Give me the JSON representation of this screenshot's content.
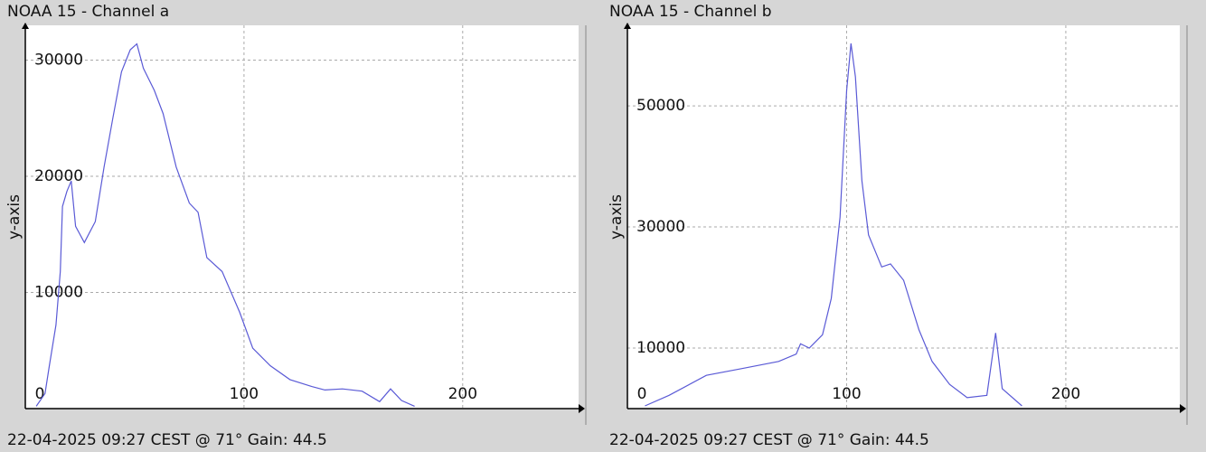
{
  "chart_data": [
    {
      "type": "line",
      "title": "NOAA 15 - Channel a",
      "footer": "22-04-2025 09:27 CEST @ 71° Gain: 44.5",
      "y_label": "y-axis",
      "xlim": [
        0,
        253
      ],
      "ylim": [
        0,
        33000
      ],
      "xticks": [
        0,
        100,
        200
      ],
      "yticks": [
        10000,
        20000,
        30000
      ],
      "grid": true,
      "series": [
        {
          "color": "#5a5ad6",
          "x": [
            5,
            9,
            11,
            14,
            16,
            17,
            19,
            21,
            23,
            27,
            32,
            36,
            40,
            44,
            48,
            51,
            54,
            59,
            63,
            69,
            75,
            79,
            83,
            90,
            98,
            104,
            112,
            121,
            131,
            137,
            145,
            154,
            162,
            167,
            172,
            178
          ],
          "values": [
            200,
            1300,
            3700,
            7200,
            11800,
            17400,
            18700,
            19600,
            15700,
            14300,
            16100,
            20800,
            25000,
            29000,
            30900,
            31400,
            29300,
            27400,
            25400,
            20800,
            17700,
            16900,
            13000,
            11800,
            8300,
            5200,
            3700,
            2500,
            1900,
            1600,
            1700,
            1500,
            600,
            1700,
            700,
            200
          ]
        }
      ]
    },
    {
      "type": "line",
      "title": "NOAA 15 - Channel b",
      "footer": "22-04-2025 09:27 CEST @ 71° Gain: 44.5",
      "y_label": "y-axis",
      "xlim": [
        0,
        252
      ],
      "ylim": [
        0,
        63300
      ],
      "xticks": [
        0,
        100,
        200
      ],
      "yticks": [
        10000,
        30000,
        50000
      ],
      "grid": true,
      "series": [
        {
          "color": "#5a5ad6",
          "x": [
            8,
            19,
            36,
            52,
            69,
            77,
            79,
            83,
            89,
            93,
            97,
            100,
            102,
            104,
            107,
            110,
            116,
            120,
            126,
            133,
            139,
            147,
            155,
            164,
            168,
            171,
            180
          ],
          "values": [
            450,
            2200,
            5500,
            6600,
            7800,
            9000,
            10700,
            10000,
            12200,
            18200,
            31600,
            52500,
            60300,
            54800,
            37600,
            28700,
            23400,
            23900,
            21200,
            13000,
            7800,
            4000,
            1800,
            2200,
            12500,
            3300,
            450
          ]
        }
      ]
    }
  ]
}
